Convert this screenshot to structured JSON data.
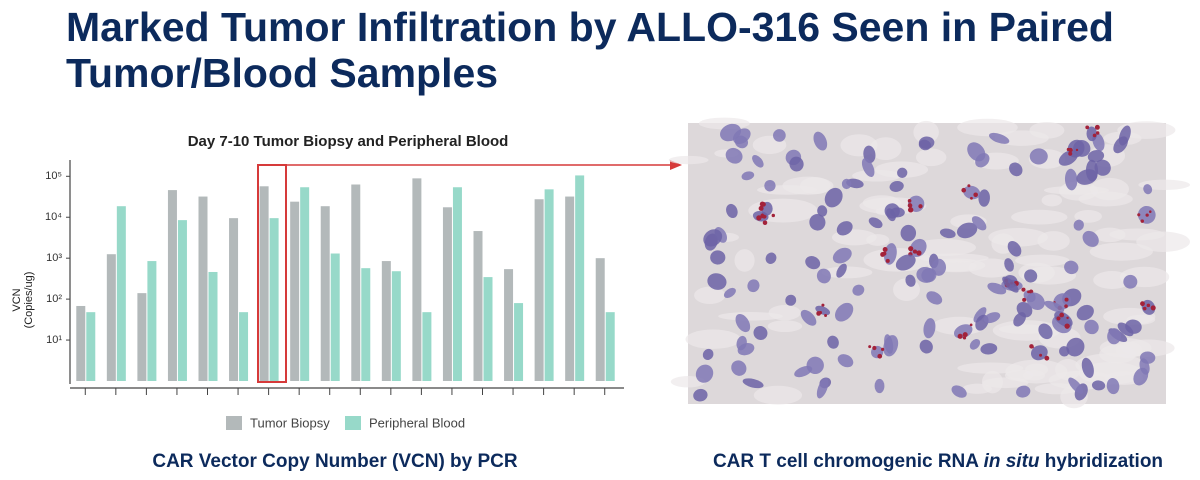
{
  "title": [
    "Marked Tumor Infiltration by ALLO-316 Seen in Paired",
    "Tumor/Blood Samples"
  ],
  "chart_data": {
    "type": "bar",
    "title": "Day 7-10 Tumor Biopsy and Peripheral Blood",
    "ylabel": [
      "VCN",
      "(Copies/ug)"
    ],
    "categories": [
      null,
      null,
      null,
      null,
      null,
      null,
      null,
      null,
      null,
      null,
      null,
      null,
      null,
      null,
      null,
      null,
      null,
      null
    ],
    "series": [
      {
        "name": "Tumor Biopsy",
        "color": "#b3b9ba",
        "values": [
          68,
          1250,
          140,
          46000,
          32000,
          9500,
          57000,
          24000,
          18600,
          63000,
          850,
          89000,
          17500,
          4600,
          540,
          27500,
          32000,
          1000
        ]
      },
      {
        "name": "Peripheral Blood",
        "color": "#97d9c9",
        "values": [
          48,
          18600,
          850,
          8500,
          460,
          48,
          9500,
          54000,
          1300,
          570,
          480,
          48,
          54000,
          345,
          80,
          48000,
          105000,
          48
        ]
      }
    ],
    "log_scale": true,
    "ylim": [
      1,
      250000
    ],
    "yticks": [
      {
        "value": 10,
        "label": "10¹"
      },
      {
        "value": 100,
        "label": "10²"
      },
      {
        "value": 1000,
        "label": "10³"
      },
      {
        "value": 10000,
        "label": "10⁴"
      },
      {
        "value": 100000,
        "label": "10⁵"
      }
    ],
    "grid": false,
    "legend": "bottom"
  },
  "captions": {
    "left": "CAR Vector Copy Number (VCN) by PCR",
    "right": [
      "CAR T cell chromogenic RNA ",
      "in situ",
      " hybridization"
    ]
  }
}
